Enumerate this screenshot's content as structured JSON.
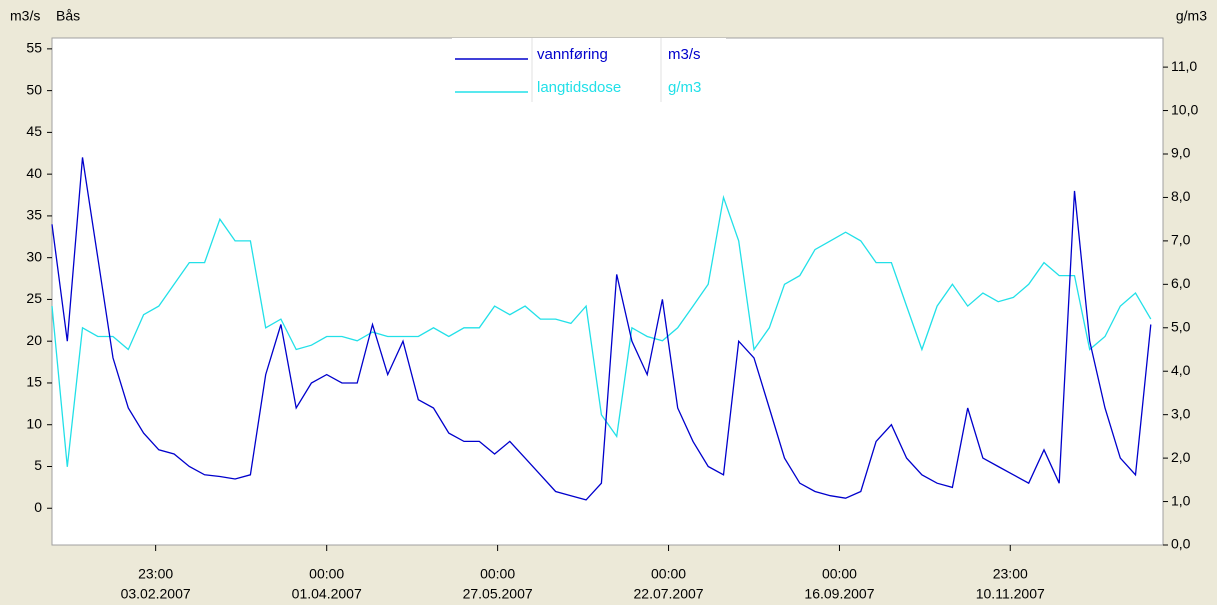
{
  "chart_data": {
    "type": "line",
    "station": "Bås",
    "ylabel": "m3/s",
    "y2label": "g/m3",
    "x": [
      "2007-01-01",
      "2007-01-06",
      "2007-01-11",
      "2007-01-16",
      "2007-01-21",
      "2007-01-26",
      "2007-01-31",
      "2007-02-05",
      "2007-02-10",
      "2007-02-15",
      "2007-02-20",
      "2007-02-25",
      "2007-03-02",
      "2007-03-07",
      "2007-03-12",
      "2007-03-17",
      "2007-03-22",
      "2007-03-27",
      "2007-04-01",
      "2007-04-06",
      "2007-04-11",
      "2007-04-16",
      "2007-04-21",
      "2007-04-26",
      "2007-05-01",
      "2007-05-06",
      "2007-05-11",
      "2007-05-16",
      "2007-05-21",
      "2007-05-26",
      "2007-05-31",
      "2007-06-05",
      "2007-06-10",
      "2007-06-15",
      "2007-06-20",
      "2007-06-25",
      "2007-06-30",
      "2007-07-05",
      "2007-07-10",
      "2007-07-15",
      "2007-07-20",
      "2007-07-25",
      "2007-07-30",
      "2007-08-04",
      "2007-08-09",
      "2007-08-14",
      "2007-08-19",
      "2007-08-24",
      "2007-08-29",
      "2007-09-03",
      "2007-09-08",
      "2007-09-13",
      "2007-09-18",
      "2007-09-23",
      "2007-09-28",
      "2007-10-03",
      "2007-10-08",
      "2007-10-13",
      "2007-10-18",
      "2007-10-23",
      "2007-10-28",
      "2007-11-02",
      "2007-11-07",
      "2007-11-12",
      "2007-11-17",
      "2007-11-22",
      "2007-11-27",
      "2007-12-02",
      "2007-12-07",
      "2007-12-12",
      "2007-12-17",
      "2007-12-22",
      "2007-12-27"
    ],
    "series": [
      {
        "name": "vannføring",
        "unit": "m3/s",
        "color": "#0000cc",
        "axis": "y",
        "values": [
          34,
          20,
          42,
          30,
          18,
          12,
          9,
          7,
          6.5,
          5,
          4,
          3.8,
          3.5,
          4,
          16,
          22,
          12,
          15,
          16,
          15,
          15,
          22,
          16,
          20,
          13,
          12,
          9,
          8,
          8,
          6.5,
          8,
          6,
          4,
          2,
          1.5,
          1,
          3,
          28,
          20,
          16,
          25,
          12,
          8,
          5,
          4,
          20,
          18,
          12,
          6,
          3,
          2,
          1.5,
          1.2,
          2,
          8,
          10,
          6,
          4,
          3,
          2.5,
          12,
          6,
          5,
          4,
          3,
          7,
          3,
          38,
          20,
          12,
          6,
          4,
          22
        ]
      },
      {
        "name": "langtidsdose",
        "unit": "g/m3",
        "color": "#22e0e8",
        "axis": "y2",
        "values": [
          5.5,
          1.8,
          5.0,
          4.8,
          4.8,
          4.5,
          5.3,
          5.5,
          6.0,
          6.5,
          6.5,
          7.5,
          7.0,
          7.0,
          5.0,
          5.2,
          4.5,
          4.6,
          4.8,
          4.8,
          4.7,
          4.9,
          4.8,
          4.8,
          4.8,
          5.0,
          4.8,
          5.0,
          5.0,
          5.5,
          5.3,
          5.5,
          5.2,
          5.2,
          5.1,
          5.5,
          3.0,
          2.5,
          5.0,
          4.8,
          4.7,
          5.0,
          5.5,
          6.0,
          8.0,
          7.0,
          4.5,
          5.0,
          6.0,
          6.2,
          6.8,
          7.0,
          7.2,
          7.0,
          6.5,
          6.5,
          5.5,
          4.5,
          5.5,
          6.0,
          5.5,
          5.8,
          5.6,
          5.7,
          6.0,
          6.5,
          6.2,
          6.2,
          4.5,
          4.8,
          5.5,
          5.8,
          5.2
        ]
      }
    ],
    "xlim": [
      "2007-01-01",
      "2007-12-31"
    ],
    "xticks": [
      {
        "value": "2007-02-03T23:00",
        "label": [
          "23:00",
          "03.02.2007"
        ]
      },
      {
        "value": "2007-04-01T00:00",
        "label": [
          "00:00",
          "01.04.2007"
        ]
      },
      {
        "value": "2007-05-27T00:00",
        "label": [
          "00:00",
          "27.05.2007"
        ]
      },
      {
        "value": "2007-07-22T00:00",
        "label": [
          "00:00",
          "22.07.2007"
        ]
      },
      {
        "value": "2007-09-16T00:00",
        "label": [
          "00:00",
          "16.09.2007"
        ]
      },
      {
        "value": "2007-11-10T23:00",
        "label": [
          "23:00",
          "10.11.2007"
        ]
      }
    ],
    "ylim": [
      -4.4,
      56.3
    ],
    "yticks": [
      0,
      5,
      10,
      15,
      20,
      25,
      30,
      35,
      40,
      45,
      50,
      55
    ],
    "y2lim": [
      0,
      11.67
    ],
    "y2ticks": [
      {
        "value": 0,
        "label": "0,0"
      },
      {
        "value": 1,
        "label": "1,0"
      },
      {
        "value": 2,
        "label": "2,0"
      },
      {
        "value": 3,
        "label": "3,0"
      },
      {
        "value": 4,
        "label": "4,0"
      },
      {
        "value": 5,
        "label": "5,0"
      },
      {
        "value": 6,
        "label": "6,0"
      },
      {
        "value": 7,
        "label": "7,0"
      },
      {
        "value": 8,
        "label": "8,0"
      },
      {
        "value": 9,
        "label": "9,0"
      },
      {
        "value": 10,
        "label": "10,0"
      },
      {
        "value": 11,
        "label": "11,0"
      }
    ]
  }
}
